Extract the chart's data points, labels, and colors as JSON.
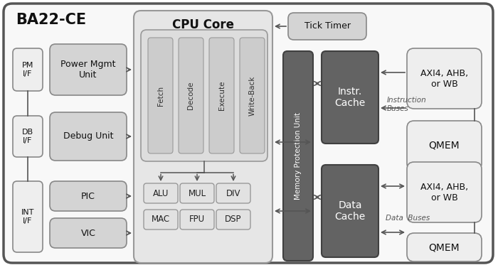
{
  "title": "BA22-CE",
  "cpu_core_label": "CPU Core",
  "tick_timer_label": "Tick Timer",
  "mpu_label": "Memory Protection Unit",
  "instr_cache_label": "Instr.\nCache",
  "data_cache_label": "Data\nCache",
  "instruction_buses_label": "Instruction\nBuses",
  "data_buses_label": "Data  Buses",
  "pipeline_labels": [
    "Fetch",
    "Decode",
    "Execute",
    "Write-Back"
  ],
  "alu_row": [
    "ALU",
    "MUL",
    "DIV"
  ],
  "mac_row": [
    "MAC",
    "FPU",
    "DSP"
  ],
  "pm_if_label": "PM\nI/F",
  "power_mgmt_label": "Power Mgmt\nUnit",
  "db_if_label": "DB\nI/F",
  "debug_unit_label": "Debug Unit",
  "int_if_label": "INT\nI/F",
  "pic_label": "PIC",
  "vic_label": "VIC",
  "axi_label": "AXI4, AHB,\nor WB",
  "qmem_label": "QMEM",
  "fc_light": "#eeeeee",
  "fc_medium": "#d4d4d4",
  "fc_pipeline": "#cccccc",
  "fc_dark": "#606060",
  "fc_cpu_bg": "#e6e6e6",
  "fc_outer": "#f0f0f0",
  "ec_dark": "#444444",
  "ec_med": "#888888",
  "tc_white": "#ffffff",
  "tc_dark": "#111111",
  "tc_mid": "#333333",
  "arrow_color": "#555555"
}
